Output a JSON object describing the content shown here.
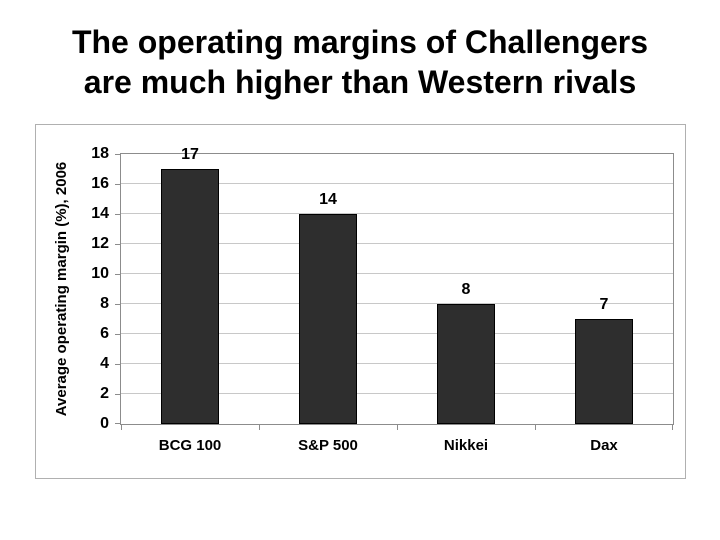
{
  "slide": {
    "title": "The operating margins of Challengers\nare much higher than Western rivals"
  },
  "chart_data": {
    "type": "bar",
    "title": "",
    "categories": [
      "BCG 100",
      "S&P 500",
      "Nikkei",
      "Dax"
    ],
    "values": [
      17,
      14,
      8,
      7
    ],
    "data_labels": [
      "17",
      "14",
      "8",
      "7"
    ],
    "xlabel": "",
    "ylabel": "Average operating margin (%), 2006",
    "ylim": [
      0,
      18
    ],
    "yticks": [
      0,
      2,
      4,
      6,
      8,
      10,
      12,
      14,
      16,
      18
    ],
    "grid": true,
    "legend": false,
    "bar_color": "#2e2e2e",
    "bar_border_color": "#000000",
    "gridline_color": "#c8c8c8",
    "axis_color": "#8c8c8c",
    "frame_border_color": "#b0b0b0",
    "text_color": "#000000"
  }
}
